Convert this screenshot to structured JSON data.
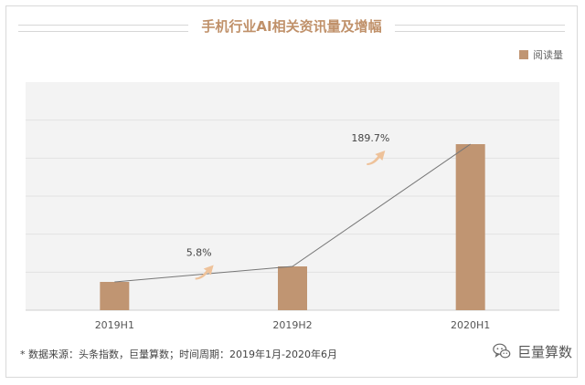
{
  "title": "手机行业AI相关资讯量及增幅",
  "legend": {
    "label": "阅读量",
    "color": "#c09572"
  },
  "footer": "* 数据来源：头条指数，巨量算数；时间周期：2019年1月-2020年6月",
  "brand": {
    "name": "巨量算数",
    "icon": "wechat-icon"
  },
  "colors": {
    "bar": "#c09572",
    "title": "#c0916a",
    "grid": "#e2e2e2",
    "plot_bg": "#f3f3f3",
    "arrow": "#eec29a"
  },
  "chart_data": {
    "type": "bar",
    "categories": [
      "2019H1",
      "2019H2",
      "2020H1"
    ],
    "series": [
      {
        "name": "阅读量",
        "values": [
          31,
          48,
          182
        ]
      }
    ],
    "ylim": [
      0,
      250
    ],
    "grid": true,
    "legend_position": "top-right",
    "annotations": [
      {
        "text": "5.8%",
        "between": [
          "2019H1",
          "2019H2"
        ]
      },
      {
        "text": "189.7%",
        "between": [
          "2019H2",
          "2020H1"
        ]
      }
    ]
  }
}
